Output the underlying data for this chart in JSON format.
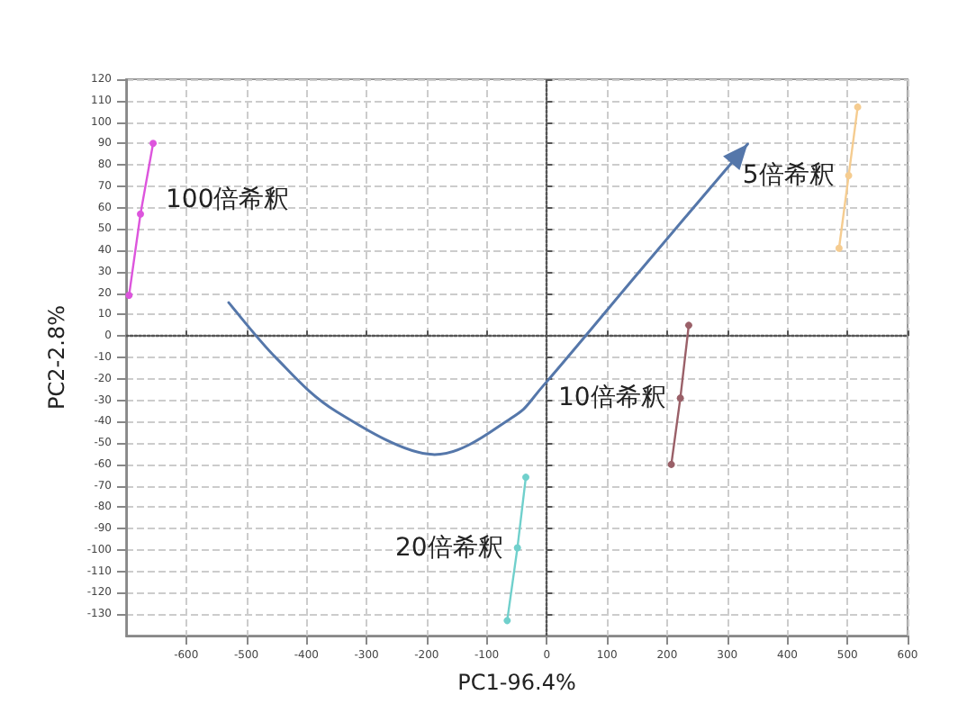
{
  "chart_data": {
    "type": "line",
    "xlabel": "PC1-96.4%",
    "ylabel": "PC2-2.8%",
    "xlim": [
      -700,
      600
    ],
    "xticks": [
      -600,
      -500,
      -400,
      -300,
      -200,
      -100,
      0,
      100,
      200,
      300,
      400,
      500,
      600
    ],
    "ylim": [
      -140,
      120
    ],
    "yticks": [
      -130,
      -120,
      -110,
      -100,
      -90,
      -80,
      -70,
      -60,
      -50,
      -40,
      -30,
      -20,
      -10,
      0,
      10,
      20,
      30,
      40,
      50,
      60,
      70,
      80,
      90,
      100,
      110,
      120
    ],
    "grid": true,
    "marker": "circle",
    "line_style": "solid",
    "series": [
      {
        "color": "#dd55dd",
        "x": [
          -695,
          -676,
          -655
        ],
        "values": [
          19,
          57,
          90
        ]
      },
      {
        "color": "#f5cc90",
        "x": [
          486,
          502,
          517
        ],
        "values": [
          41,
          75,
          107
        ]
      },
      {
        "color": "#9a6068",
        "x": [
          207,
          222,
          236
        ],
        "values": [
          -60,
          -29,
          5
        ]
      },
      {
        "color": "#70d0cc",
        "x": [
          -66,
          -49,
          -35
        ],
        "values": [
          -133,
          -99,
          -66
        ]
      }
    ],
    "annotations": [
      "100倍希釈",
      "5倍希釈",
      "10倍希釈",
      "20倍希釈"
    ]
  }
}
